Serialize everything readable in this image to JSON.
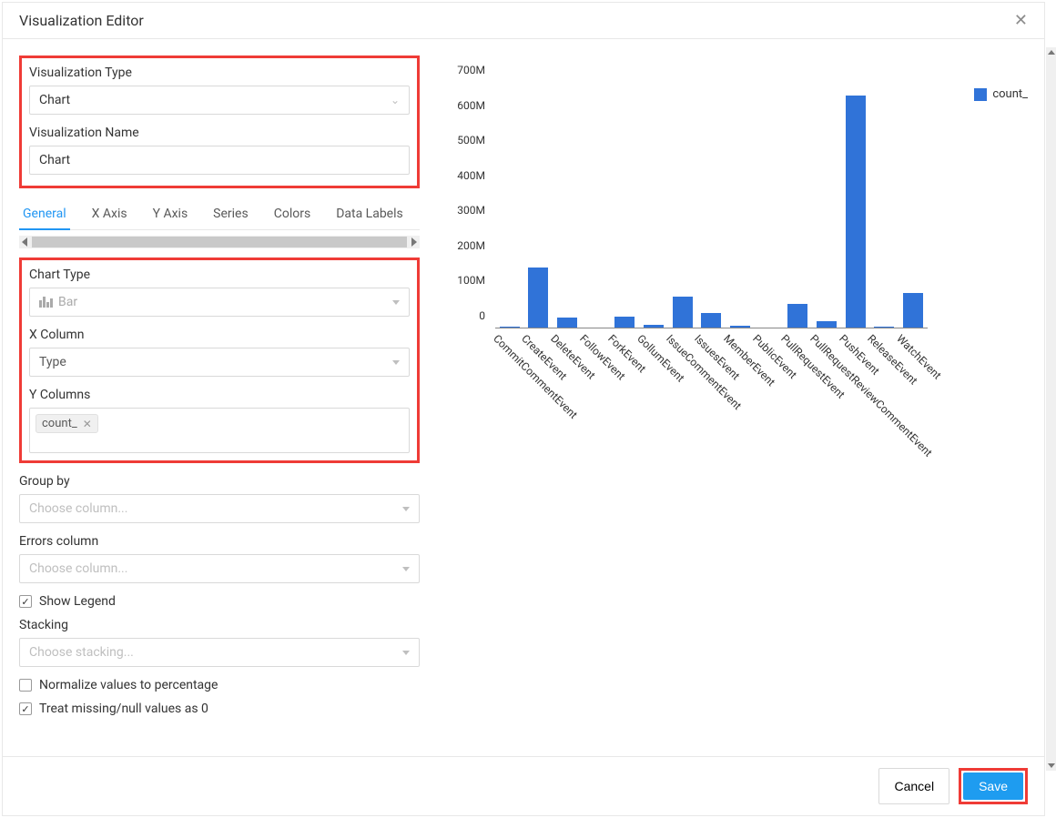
{
  "modal": {
    "title": "Visualization Editor"
  },
  "top": {
    "viz_type_label": "Visualization Type",
    "viz_type_value": "Chart",
    "viz_name_label": "Visualization Name",
    "viz_name_value": "Chart"
  },
  "tabs": [
    "General",
    "X Axis",
    "Y Axis",
    "Series",
    "Colors",
    "Data Labels"
  ],
  "active_tab": 0,
  "general": {
    "chart_type_label": "Chart Type",
    "chart_type_value": "Bar",
    "x_col_label": "X Column",
    "x_col_value": "Type",
    "y_cols_label": "Y Columns",
    "y_cols": [
      "count_"
    ]
  },
  "group_by_label": "Group by",
  "group_by_placeholder": "Choose column...",
  "errors_col_label": "Errors column",
  "errors_col_placeholder": "Choose column...",
  "show_legend_label": "Show Legend",
  "show_legend_checked": true,
  "stacking_label": "Stacking",
  "stacking_placeholder": "Choose stacking...",
  "normalize_label": "Normalize values to percentage",
  "normalize_checked": false,
  "treat_null_label": "Treat missing/null values as 0",
  "treat_null_checked": true,
  "footer": {
    "cancel": "Cancel",
    "save": "Save"
  },
  "chart": {
    "type": "bar",
    "bar_color": "#3073d8",
    "legend_label": "count_",
    "ymax": 700,
    "ytick_step": 100,
    "ytick_suffix": "M",
    "categories": [
      "CommitCommentEvent",
      "CreateEvent",
      "DeleteEvent",
      "FollowEvent",
      "ForkEvent",
      "GollumEvent",
      "IssueCommentEvent",
      "IssuesEvent",
      "MemberEvent",
      "PublicEvent",
      "PullRequestEvent",
      "PullRequestReviewCommentEvent",
      "PushEvent",
      "ReleaseEvent",
      "WatchEvent"
    ],
    "values": [
      5,
      175,
      30,
      2,
      35,
      10,
      90,
      45,
      8,
      3,
      70,
      22,
      665,
      5,
      100
    ]
  }
}
